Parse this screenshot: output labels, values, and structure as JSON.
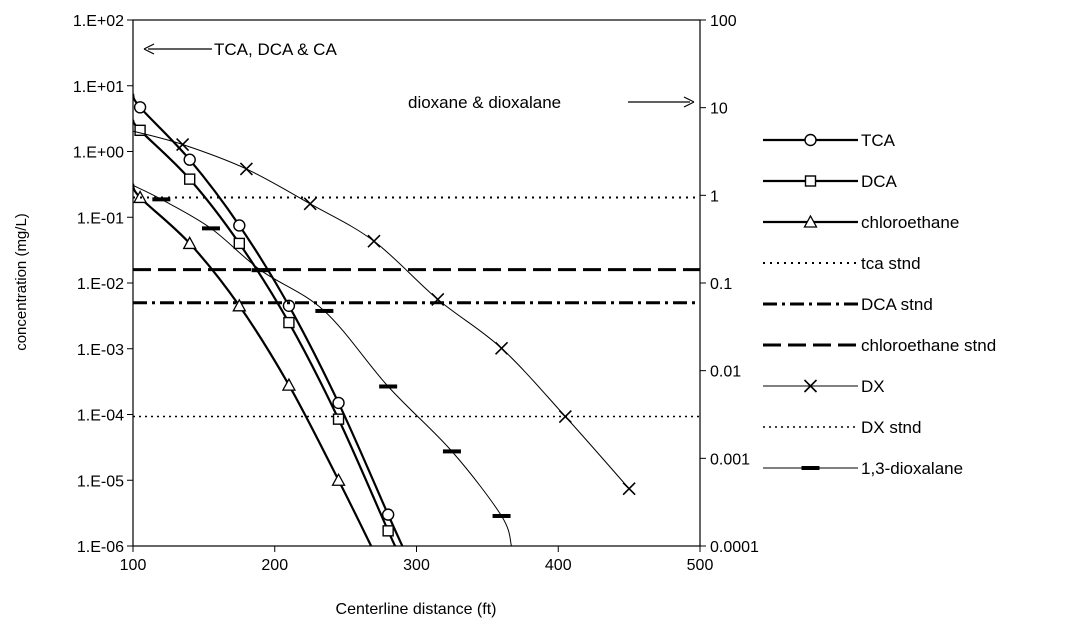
{
  "chart_data": {
    "type": "line",
    "xlabel": "Centerline distance (ft)",
    "ylabel": "concentration (mg/L)",
    "xlim": [
      100,
      500
    ],
    "xticks": [
      "100",
      "200",
      "300",
      "400",
      "500"
    ],
    "ylim_left": [
      1e-06,
      100
    ],
    "yscale_left": "log",
    "yticks_left": [
      "1.E+02",
      "1.E+01",
      "1.E+00",
      "1.E-01",
      "1.E-02",
      "1.E-03",
      "1.E-04",
      "1.E-05",
      "1.E-06"
    ],
    "ylim_right": [
      0.0001,
      100
    ],
    "yscale_right": "log",
    "yticks_right": [
      "100",
      "10",
      "1",
      "0.1",
      "0.01",
      "0.001",
      "0.0001"
    ],
    "grid": false,
    "legend_position": "right",
    "annotations": {
      "left_axis": "TCA, DCA & CA",
      "right_axis": "dioxane & dioxalane"
    },
    "series": [
      {
        "name": "TCA",
        "axis": "left",
        "marker": "circle",
        "line": "solid-thick",
        "points": [
          [
            105,
            4.7
          ],
          [
            140,
            0.75
          ],
          [
            175,
            0.075
          ],
          [
            210,
            0.0045
          ],
          [
            245,
            0.00015
          ],
          [
            280,
            3e-06
          ]
        ],
        "curve": [
          [
            100,
            7.5
          ],
          [
            105,
            4.7
          ],
          [
            140,
            0.75
          ],
          [
            175,
            0.075
          ],
          [
            210,
            0.0045
          ],
          [
            245,
            0.00015
          ],
          [
            280,
            3e-06
          ],
          [
            290,
            1e-06
          ]
        ]
      },
      {
        "name": "DCA",
        "axis": "left",
        "marker": "square",
        "line": "solid-thick",
        "points": [
          [
            105,
            2.1
          ],
          [
            140,
            0.38
          ],
          [
            175,
            0.04
          ],
          [
            210,
            0.0025
          ],
          [
            245,
            8.5e-05
          ],
          [
            280,
            1.7e-06
          ]
        ],
        "curve": [
          [
            100,
            3.0
          ],
          [
            105,
            2.1
          ],
          [
            140,
            0.38
          ],
          [
            175,
            0.04
          ],
          [
            210,
            0.0025
          ],
          [
            245,
            8.5e-05
          ],
          [
            280,
            1.7e-06
          ],
          [
            285,
            1e-06
          ]
        ]
      },
      {
        "name": "chloroethane",
        "axis": "left",
        "marker": "triangle",
        "line": "solid-thick",
        "points": [
          [
            105,
            0.2
          ],
          [
            140,
            0.04
          ],
          [
            175,
            0.0045
          ],
          [
            210,
            0.00028
          ],
          [
            245,
            1e-05
          ]
        ],
        "curve": [
          [
            100,
            0.32
          ],
          [
            105,
            0.2
          ],
          [
            140,
            0.04
          ],
          [
            175,
            0.0045
          ],
          [
            210,
            0.00028
          ],
          [
            245,
            1e-05
          ],
          [
            268,
            1e-06
          ]
        ]
      },
      {
        "name": "tca stnd",
        "axis": "left",
        "marker": "none",
        "line": "dotted",
        "points": [],
        "curve": [
          [
            100,
            0.2
          ],
          [
            500,
            0.2
          ]
        ]
      },
      {
        "name": "DCA stnd",
        "axis": "left",
        "marker": "none",
        "line": "dashdot",
        "points": [],
        "curve": [
          [
            100,
            0.005
          ],
          [
            500,
            0.005
          ]
        ]
      },
      {
        "name": "chloroethane stnd",
        "axis": "left",
        "marker": "none",
        "line": "dashed",
        "points": [],
        "curve": [
          [
            100,
            0.016
          ],
          [
            500,
            0.016
          ]
        ]
      },
      {
        "name": "DX",
        "axis": "right",
        "marker": "x",
        "line": "solid-thin",
        "points": [
          [
            135,
            3.8
          ],
          [
            180,
            2.0
          ],
          [
            225,
            0.8
          ],
          [
            270,
            0.3
          ],
          [
            315,
            0.065
          ],
          [
            360,
            0.018
          ],
          [
            405,
            0.003
          ],
          [
            450,
            0.00045
          ]
        ],
        "curve": [
          [
            100,
            5.4
          ],
          [
            135,
            3.8
          ],
          [
            180,
            2.0
          ],
          [
            225,
            0.8
          ],
          [
            270,
            0.3
          ],
          [
            315,
            0.065
          ],
          [
            360,
            0.018
          ],
          [
            405,
            0.003
          ],
          [
            450,
            0.00045
          ]
        ]
      },
      {
        "name": "DX stnd",
        "axis": "right",
        "marker": "none",
        "line": "dotted-fine",
        "points": [],
        "curve": [
          [
            100,
            0.003
          ],
          [
            500,
            0.003
          ]
        ]
      },
      {
        "name": "1,3-dioxalane",
        "axis": "right",
        "marker": "dash",
        "line": "solid-thin",
        "points": [
          [
            120,
            0.9
          ],
          [
            155,
            0.42
          ],
          [
            190,
            0.14
          ],
          [
            235,
            0.048
          ],
          [
            280,
            0.0066
          ],
          [
            325,
            0.0012
          ],
          [
            360,
            0.00022
          ]
        ],
        "curve": [
          [
            100,
            1.3
          ],
          [
            120,
            0.9
          ],
          [
            155,
            0.42
          ],
          [
            190,
            0.14
          ],
          [
            235,
            0.048
          ],
          [
            280,
            0.0066
          ],
          [
            325,
            0.0012
          ],
          [
            360,
            0.00022
          ],
          [
            367,
            0.0001
          ]
        ]
      }
    ]
  }
}
